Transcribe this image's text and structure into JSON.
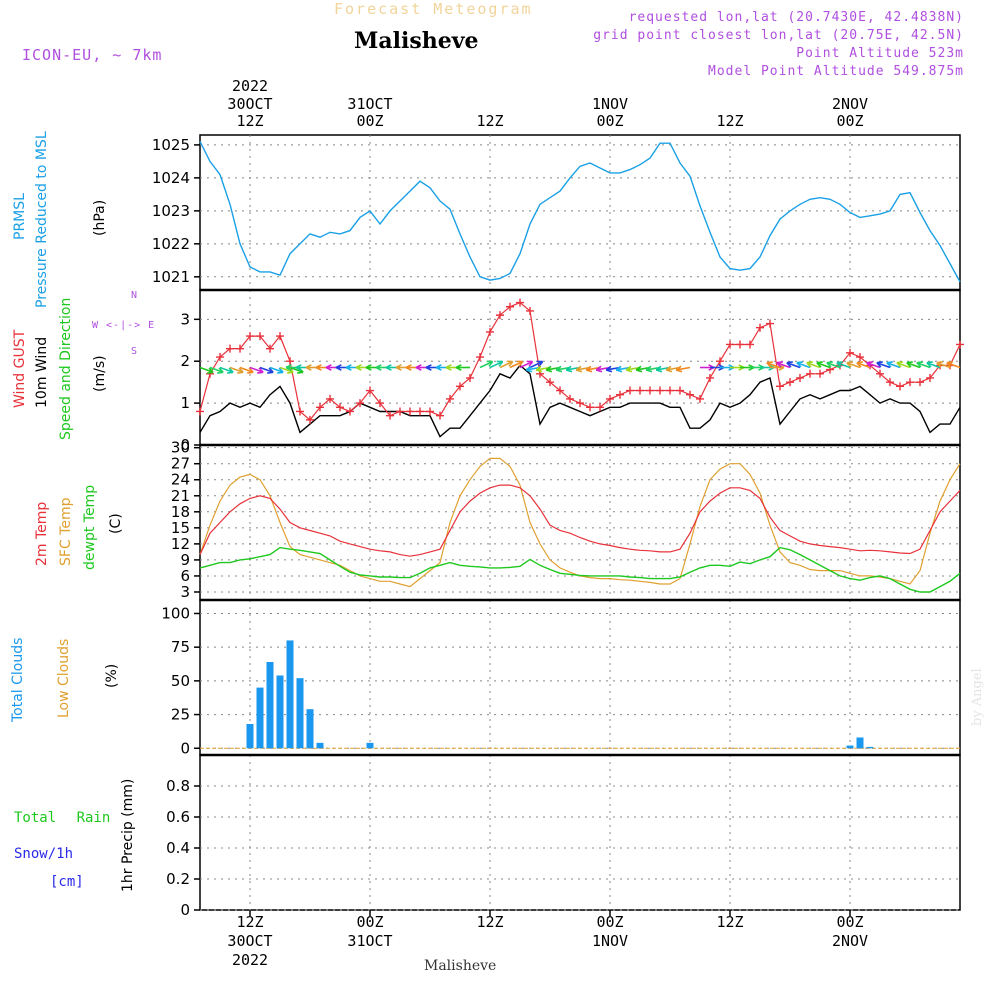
{
  "header": {
    "subtitle": "Forecast Meteogram",
    "title": "Malisheve",
    "model": "ICON-EU, ~ 7km",
    "requested": "requested lon,lat (20.7430E, 42.4838N)",
    "grid_point": "grid point closest lon,lat (20.75E, 42.5N)",
    "point_alt": "Point Altitude 523m",
    "model_alt": "Model Point Altitude 549.875m"
  },
  "top_axis": [
    {
      "t": 12,
      "l1": "2022",
      "l2": "30OCT",
      "l3": "12Z"
    },
    {
      "t": 24,
      "l1": "",
      "l2": "31OCT",
      "l3": "00Z"
    },
    {
      "t": 36,
      "l1": "",
      "l2": "",
      "l3": "12Z"
    },
    {
      "t": 48,
      "l1": "",
      "l2": "1NOV",
      "l3": "00Z"
    },
    {
      "t": 60,
      "l1": "",
      "l2": "",
      "l3": "12Z"
    },
    {
      "t": 72,
      "l1": "",
      "l2": "2NOV",
      "l3": "00Z"
    }
  ],
  "bottom_axis": [
    {
      "t": 12,
      "l1": "12Z",
      "l2": "30OCT",
      "l3": "2022"
    },
    {
      "t": 24,
      "l1": "00Z",
      "l2": "31OCT",
      "l3": ""
    },
    {
      "t": 36,
      "l1": "12Z",
      "l2": "",
      "l3": ""
    },
    {
      "t": 48,
      "l1": "00Z",
      "l2": "1NOV",
      "l3": ""
    },
    {
      "t": 60,
      "l1": "12Z",
      "l2": "",
      "l3": ""
    },
    {
      "t": 72,
      "l1": "00Z",
      "l2": "2NOV",
      "l3": ""
    }
  ],
  "footer": "Malisheve",
  "credit": "by Angel",
  "panel_labels": {
    "p1": {
      "a": "PRMSL",
      "b": "Pressure Reduced to MSL",
      "unit": "(hPa)"
    },
    "p2": {
      "a": "Wind GUST",
      "b": "10m Wind",
      "c": "Speed and Direction",
      "unit": "(m/s)",
      "compass_ns": "N",
      "compass_we": "W <-|-> E",
      "compass_s": "S"
    },
    "p3": {
      "a": "2m Temp",
      "b": "SFC Temp",
      "c": "dewpt Temp",
      "unit": "(C)"
    },
    "p4": {
      "a": "Total Clouds",
      "b": "Low Clouds",
      "unit": "(%)"
    },
    "p5": {
      "a": "Total Rain",
      "b": "Snow/1h",
      "c": "[cm]",
      "unit": "1hr Precip (mm)"
    }
  },
  "colors": {
    "pressure": "#1aa0e6",
    "gust": "#e8313a",
    "wind": "#000000",
    "temp2m": "#e8313a",
    "sfc": "#e0a030",
    "dewpt": "#1ec81e",
    "clouds": "#1a98f0",
    "lowclouds": "#e0a030",
    "rain": "#1ec81e",
    "snow": "#2a2ae8",
    "purple": "#b04fe0"
  },
  "chart_data": [
    {
      "type": "line",
      "name": "PRMSL",
      "x_range_hours": [
        7,
        83
      ],
      "ylim": [
        1020.6,
        1025.3
      ],
      "yticks": [
        1021,
        1022,
        1023,
        1024,
        1025
      ],
      "x": [
        7,
        8,
        9,
        10,
        11,
        12,
        13,
        14,
        15,
        16,
        17,
        18,
        19,
        20,
        21,
        22,
        23,
        24,
        25,
        26,
        27,
        28,
        29,
        30,
        31,
        32,
        33,
        34,
        35,
        36,
        37,
        38,
        39,
        40,
        41,
        42,
        43,
        44,
        45,
        46,
        47,
        48,
        49,
        50,
        51,
        52,
        53,
        54,
        55,
        56,
        57,
        58,
        59,
        60,
        61,
        62,
        63,
        64,
        65,
        66,
        67,
        68,
        69,
        70,
        71,
        72,
        73,
        74,
        75,
        76,
        77,
        78,
        79,
        80,
        81,
        82,
        83
      ],
      "values": [
        1025.1,
        1024.5,
        1024.1,
        1023.2,
        1022.0,
        1021.3,
        1021.15,
        1021.15,
        1021.05,
        1021.7,
        1022.0,
        1022.3,
        1022.2,
        1022.35,
        1022.3,
        1022.4,
        1022.8,
        1023.0,
        1022.6,
        1023.0,
        1023.3,
        1023.6,
        1023.9,
        1023.7,
        1023.3,
        1023.05,
        1022.3,
        1021.6,
        1021.0,
        1020.9,
        1020.95,
        1021.1,
        1021.7,
        1022.6,
        1023.2,
        1023.4,
        1023.6,
        1024.0,
        1024.35,
        1024.45,
        1024.3,
        1024.15,
        1024.15,
        1024.25,
        1024.4,
        1024.6,
        1025.05,
        1025.05,
        1024.45,
        1024.05,
        1023.15,
        1022.35,
        1021.6,
        1021.25,
        1021.2,
        1021.25,
        1021.6,
        1022.25,
        1022.75,
        1023.0,
        1023.2,
        1023.35,
        1023.4,
        1023.35,
        1023.2,
        1022.95,
        1022.8,
        1022.85,
        1022.9,
        1023.0,
        1023.5,
        1023.55,
        1022.95,
        1022.4,
        1021.95,
        1021.4,
        1020.85
      ]
    },
    {
      "type": "line",
      "name": "Wind",
      "ylim": [
        0,
        3.7
      ],
      "yticks": [
        0,
        1,
        2,
        3
      ],
      "x": [
        7,
        8,
        9,
        10,
        11,
        12,
        13,
        14,
        15,
        16,
        17,
        18,
        19,
        20,
        21,
        22,
        23,
        24,
        25,
        26,
        27,
        28,
        29,
        30,
        31,
        32,
        33,
        34,
        35,
        36,
        37,
        38,
        39,
        40,
        41,
        42,
        43,
        44,
        45,
        46,
        47,
        48,
        49,
        50,
        51,
        52,
        53,
        54,
        55,
        56,
        57,
        58,
        59,
        60,
        61,
        62,
        63,
        64,
        65,
        66,
        67,
        68,
        69,
        70,
        71,
        72,
        73,
        74,
        75,
        76,
        77,
        78,
        79,
        80,
        81,
        82,
        83
      ],
      "gust": [
        0.8,
        1.7,
        2.1,
        2.3,
        2.3,
        2.6,
        2.6,
        2.3,
        2.6,
        2.0,
        0.8,
        0.6,
        0.9,
        1.1,
        0.9,
        0.8,
        1.0,
        1.3,
        1.0,
        0.7,
        0.8,
        0.8,
        0.8,
        0.8,
        0.7,
        1.1,
        1.4,
        1.6,
        2.1,
        2.7,
        3.1,
        3.3,
        3.4,
        3.2,
        1.7,
        1.5,
        1.3,
        1.1,
        1.0,
        0.9,
        0.9,
        1.1,
        1.2,
        1.3,
        1.3,
        1.3,
        1.3,
        1.3,
        1.3,
        1.2,
        1.1,
        1.6,
        2.0,
        2.4,
        2.4,
        2.4,
        2.8,
        2.9,
        1.4,
        1.5,
        1.6,
        1.7,
        1.7,
        1.8,
        1.9,
        2.2,
        2.1,
        1.9,
        1.7,
        1.5,
        1.4,
        1.5,
        1.5,
        1.6,
        1.9,
        1.9,
        2.4
      ],
      "wind": [
        0.3,
        0.7,
        0.8,
        1.0,
        0.9,
        1.0,
        0.9,
        1.2,
        1.4,
        1.0,
        0.3,
        0.5,
        0.7,
        0.7,
        0.7,
        0.8,
        1.0,
        0.9,
        0.8,
        0.8,
        0.8,
        0.7,
        0.7,
        0.7,
        0.2,
        0.4,
        0.4,
        0.7,
        1.0,
        1.3,
        1.7,
        1.6,
        1.9,
        1.7,
        0.5,
        0.9,
        1.0,
        0.9,
        0.8,
        0.7,
        0.8,
        0.9,
        0.9,
        1.0,
        1.0,
        1.0,
        1.0,
        0.9,
        0.9,
        0.4,
        0.4,
        0.6,
        1.0,
        0.9,
        1.0,
        1.2,
        1.5,
        1.6,
        0.5,
        0.8,
        1.1,
        1.2,
        1.1,
        1.2,
        1.3,
        1.3,
        1.4,
        1.2,
        1.0,
        1.1,
        1.0,
        1.0,
        0.8,
        0.3,
        0.5,
        0.5,
        0.9
      ]
    },
    {
      "type": "line",
      "name": "Temperature",
      "ylim": [
        1.5,
        30.5
      ],
      "yticks": [
        3,
        6,
        9,
        12,
        15,
        18,
        21,
        24,
        27,
        30
      ],
      "x": [
        7,
        8,
        9,
        10,
        11,
        12,
        13,
        14,
        15,
        16,
        17,
        18,
        19,
        20,
        21,
        22,
        23,
        24,
        25,
        26,
        27,
        28,
        29,
        30,
        31,
        32,
        33,
        34,
        35,
        36,
        37,
        38,
        39,
        40,
        41,
        42,
        43,
        44,
        45,
        46,
        47,
        48,
        49,
        50,
        51,
        52,
        53,
        54,
        55,
        56,
        57,
        58,
        59,
        60,
        61,
        62,
        63,
        64,
        65,
        66,
        67,
        68,
        69,
        70,
        71,
        72,
        73,
        74,
        75,
        76,
        77,
        78,
        79,
        80,
        81,
        82,
        83
      ],
      "temp_2m": [
        10.0,
        14.0,
        16.0,
        18.0,
        19.5,
        20.5,
        21.0,
        20.5,
        18.5,
        16.0,
        15.0,
        14.5,
        14.0,
        13.5,
        12.5,
        12.0,
        11.5,
        11.0,
        10.7,
        10.5,
        10.0,
        9.7,
        10.0,
        10.5,
        11.0,
        14.5,
        18.0,
        20.0,
        21.5,
        22.5,
        23.0,
        23.0,
        22.5,
        21.0,
        18.5,
        15.5,
        14.5,
        14.0,
        13.2,
        12.5,
        12.0,
        11.7,
        11.3,
        11.0,
        10.8,
        10.7,
        10.5,
        10.5,
        11.0,
        14.0,
        18.0,
        20.0,
        21.5,
        22.5,
        22.5,
        22.0,
        20.5,
        17.0,
        14.5,
        13.5,
        12.5,
        12.0,
        11.7,
        11.5,
        11.3,
        11.0,
        10.7,
        10.8,
        10.7,
        10.5,
        10.3,
        10.2,
        11.0,
        14.5,
        18.0,
        20.0,
        22.0
      ],
      "sfc": [
        10.0,
        15.5,
        20.0,
        23.0,
        24.5,
        25.0,
        24.0,
        21.0,
        16.0,
        11.5,
        10.0,
        9.5,
        9.0,
        8.5,
        8.0,
        7.0,
        6.0,
        5.5,
        5.0,
        5.0,
        4.5,
        4.0,
        5.5,
        7.0,
        8.5,
        16.0,
        21.0,
        24.0,
        26.5,
        28.0,
        28.0,
        26.5,
        23.0,
        16.0,
        12.0,
        9.0,
        7.5,
        6.7,
        6.0,
        5.7,
        5.5,
        5.5,
        5.3,
        5.2,
        5.0,
        4.8,
        4.5,
        4.5,
        5.5,
        12.0,
        19.0,
        24.0,
        26.0,
        27.0,
        27.0,
        25.0,
        21.5,
        15.5,
        10.5,
        8.5,
        8.0,
        7.2,
        7.0,
        7.0,
        7.0,
        6.5,
        6.0,
        6.0,
        5.8,
        5.5,
        5.0,
        4.5,
        7.0,
        14.0,
        20.0,
        24.0,
        27.0
      ],
      "dewpt": [
        7.5,
        8.0,
        8.5,
        8.5,
        9.0,
        9.2,
        9.6,
        10.0,
        11.3,
        11.0,
        10.8,
        10.5,
        10.2,
        9.0,
        7.8,
        6.7,
        6.2,
        6.0,
        5.8,
        5.8,
        5.7,
        5.7,
        6.5,
        7.5,
        8.0,
        8.5,
        8.0,
        7.8,
        7.7,
        7.5,
        7.5,
        7.6,
        7.8,
        9.1,
        8.0,
        7.2,
        6.5,
        6.3,
        6.1,
        6.0,
        6.0,
        6.0,
        6.0,
        5.8,
        5.7,
        5.5,
        5.5,
        5.5,
        5.8,
        6.7,
        7.5,
        8.0,
        8.0,
        7.8,
        8.6,
        8.3,
        9.0,
        9.6,
        11.3,
        10.9,
        10.0,
        9.0,
        8.0,
        7.0,
        6.0,
        5.5,
        5.2,
        5.7,
        6.0,
        5.5,
        4.5,
        3.5,
        3.0,
        3.0,
        4.0,
        5.0,
        6.5
      ]
    },
    {
      "type": "bar",
      "name": "Total Clouds",
      "ylim": [
        -5,
        110
      ],
      "yticks": [
        0,
        25,
        50,
        75,
        100
      ],
      "x": [
        12,
        13,
        14,
        15,
        16,
        17,
        18,
        19,
        20,
        21,
        22,
        23,
        24,
        72,
        73,
        74
      ],
      "values": [
        18,
        45,
        64,
        54,
        80,
        52,
        29,
        4,
        0,
        0,
        0,
        0,
        4,
        2,
        8,
        1
      ]
    },
    {
      "type": "bar",
      "name": "1hr Precip",
      "ylim": [
        0,
        1.0
      ],
      "yticks": [
        0,
        0.2,
        0.4,
        0.6,
        0.8
      ],
      "x": [],
      "values": []
    }
  ]
}
